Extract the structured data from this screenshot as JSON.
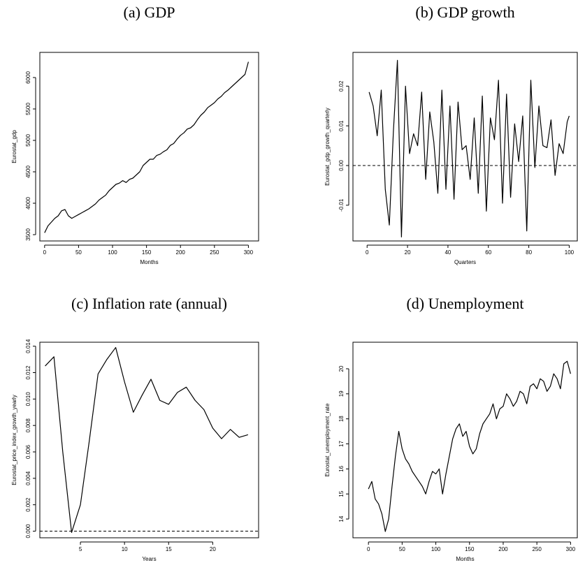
{
  "chart_data": [
    {
      "type": "line",
      "title": "(a) GDP",
      "xlabel": "Months",
      "ylabel": "Eurostat_gdp",
      "color": "#000000",
      "x": [
        0,
        5,
        10,
        15,
        20,
        25,
        30,
        35,
        40,
        45,
        50,
        55,
        60,
        65,
        70,
        75,
        80,
        85,
        90,
        95,
        100,
        105,
        110,
        115,
        120,
        125,
        130,
        135,
        140,
        145,
        150,
        155,
        160,
        165,
        170,
        175,
        180,
        185,
        190,
        195,
        200,
        205,
        210,
        215,
        220,
        225,
        230,
        235,
        240,
        245,
        250,
        255,
        260,
        265,
        270,
        275,
        280,
        285,
        290,
        295,
        300
      ],
      "values": [
        3530,
        3640,
        3700,
        3760,
        3800,
        3880,
        3900,
        3800,
        3760,
        3790,
        3820,
        3850,
        3880,
        3910,
        3950,
        3990,
        4050,
        4090,
        4130,
        4200,
        4250,
        4300,
        4320,
        4360,
        4330,
        4380,
        4400,
        4450,
        4500,
        4600,
        4650,
        4700,
        4700,
        4760,
        4780,
        4820,
        4850,
        4920,
        4950,
        5020,
        5080,
        5120,
        5180,
        5200,
        5250,
        5330,
        5400,
        5450,
        5520,
        5560,
        5600,
        5660,
        5700,
        5760,
        5800,
        5850,
        5900,
        5950,
        6000,
        6050,
        6250
      ],
      "xlim": [
        -7,
        315
      ],
      "ylim": [
        3400,
        6400
      ],
      "xticks": [
        0,
        50,
        100,
        150,
        200,
        250,
        300
      ],
      "yticks": [
        3500,
        4000,
        4500,
        5000,
        5500,
        6000
      ]
    },
    {
      "type": "line",
      "title": "(b) GDP growth",
      "xlabel": "Quarters",
      "ylabel": "Eurostat_gdp_growth_quarterly",
      "color": "#000000",
      "x": [
        1,
        3,
        5,
        7,
        9,
        11,
        13,
        15,
        17,
        19,
        21,
        23,
        25,
        27,
        29,
        31,
        33,
        35,
        37,
        39,
        41,
        43,
        45,
        47,
        49,
        51,
        53,
        55,
        57,
        59,
        61,
        63,
        65,
        67,
        69,
        71,
        73,
        75,
        77,
        79,
        81,
        83,
        85,
        87,
        89,
        91,
        93,
        95,
        97,
        99,
        100
      ],
      "values": [
        0.0185,
        0.015,
        0.0075,
        0.019,
        -0.006,
        -0.015,
        0.0085,
        0.0265,
        -0.018,
        0.02,
        0.003,
        0.008,
        0.005,
        0.0185,
        -0.0035,
        0.0135,
        0.006,
        -0.007,
        0.019,
        -0.006,
        0.015,
        -0.0085,
        0.016,
        0.004,
        0.005,
        -0.0035,
        0.012,
        -0.007,
        0.0175,
        -0.0115,
        0.012,
        0.0065,
        0.0215,
        -0.0095,
        0.018,
        -0.008,
        0.0105,
        0.001,
        0.0125,
        -0.0165,
        0.0215,
        -0.0005,
        0.015,
        0.005,
        0.0045,
        0.0115,
        -0.0025,
        0.0055,
        0.003,
        0.011,
        0.0125
      ],
      "hline": 0,
      "xlim": [
        -7,
        104
      ],
      "ylim": [
        -0.019,
        0.0285
      ],
      "xticks": [
        0,
        20,
        40,
        60,
        80,
        100
      ],
      "yticks": [
        -0.01,
        {
          "value": 0,
          "label": "0.00"
        },
        0.01,
        0.02
      ]
    },
    {
      "type": "line",
      "title": "(c) Inflation rate (annual)",
      "xlabel": "Years",
      "ylabel": "Eurostat_price_index_growth_yearly",
      "color": "#000000",
      "x": [
        1,
        2,
        3,
        4,
        5,
        6,
        7,
        8,
        9,
        10,
        11,
        12,
        13,
        14,
        15,
        16,
        17,
        18,
        19,
        20,
        21,
        22,
        23,
        24
      ],
      "values": [
        0.0125,
        0.0132,
        0.006,
        -0.0001,
        0.002,
        0.0068,
        0.0119,
        0.013,
        0.0139,
        0.0113,
        0.009,
        0.0103,
        0.0115,
        0.0099,
        0.0096,
        0.0105,
        0.0109,
        0.0099,
        0.0092,
        0.0078,
        0.007,
        0.0077,
        0.0071,
        0.0073
      ],
      "hline": 0,
      "xlim": [
        0.4,
        25.2
      ],
      "ylim": [
        -0.0005,
        0.0143
      ],
      "xticks": [
        5,
        10,
        15,
        20
      ],
      "yticks": [
        {
          "value": 0,
          "label": "0.000"
        },
        0.002,
        0.004,
        0.006,
        0.008,
        {
          "value": 0.01,
          "label": "0.010"
        },
        0.012,
        0.014
      ]
    },
    {
      "type": "line",
      "title": "(d) Unemployment",
      "xlabel": "Months",
      "ylabel": "Eurostat_unemployment_rate",
      "color": "#000000",
      "x": [
        0,
        5,
        10,
        15,
        20,
        25,
        30,
        35,
        40,
        45,
        50,
        55,
        60,
        65,
        70,
        75,
        80,
        85,
        90,
        95,
        100,
        105,
        110,
        115,
        120,
        125,
        130,
        135,
        140,
        145,
        150,
        155,
        160,
        165,
        170,
        175,
        180,
        185,
        190,
        195,
        200,
        205,
        210,
        215,
        220,
        225,
        230,
        235,
        240,
        245,
        250,
        255,
        260,
        265,
        270,
        275,
        280,
        285,
        290,
        295,
        300
      ],
      "values": [
        15.2,
        15.5,
        14.8,
        14.6,
        14.2,
        13.5,
        14.0,
        15.3,
        16.5,
        17.5,
        16.8,
        16.4,
        16.2,
        15.9,
        15.7,
        15.5,
        15.3,
        15.0,
        15.5,
        15.9,
        15.8,
        16.0,
        15.0,
        15.8,
        16.5,
        17.2,
        17.6,
        17.8,
        17.3,
        17.5,
        16.9,
        16.6,
        16.8,
        17.4,
        17.8,
        18.0,
        18.2,
        18.6,
        18.0,
        18.4,
        18.5,
        19.0,
        18.8,
        18.5,
        18.7,
        19.1,
        19.0,
        18.6,
        19.3,
        19.4,
        19.2,
        19.6,
        19.5,
        19.1,
        19.3,
        19.8,
        19.6,
        19.2,
        20.2,
        20.3,
        19.8
      ],
      "xlim": [
        -23,
        310
      ],
      "ylim": [
        13.25,
        21.06
      ],
      "xticks": [
        0,
        50,
        100,
        150,
        200,
        250,
        300
      ],
      "yticks": [
        14,
        15,
        16,
        17,
        18,
        19,
        20
      ]
    }
  ]
}
